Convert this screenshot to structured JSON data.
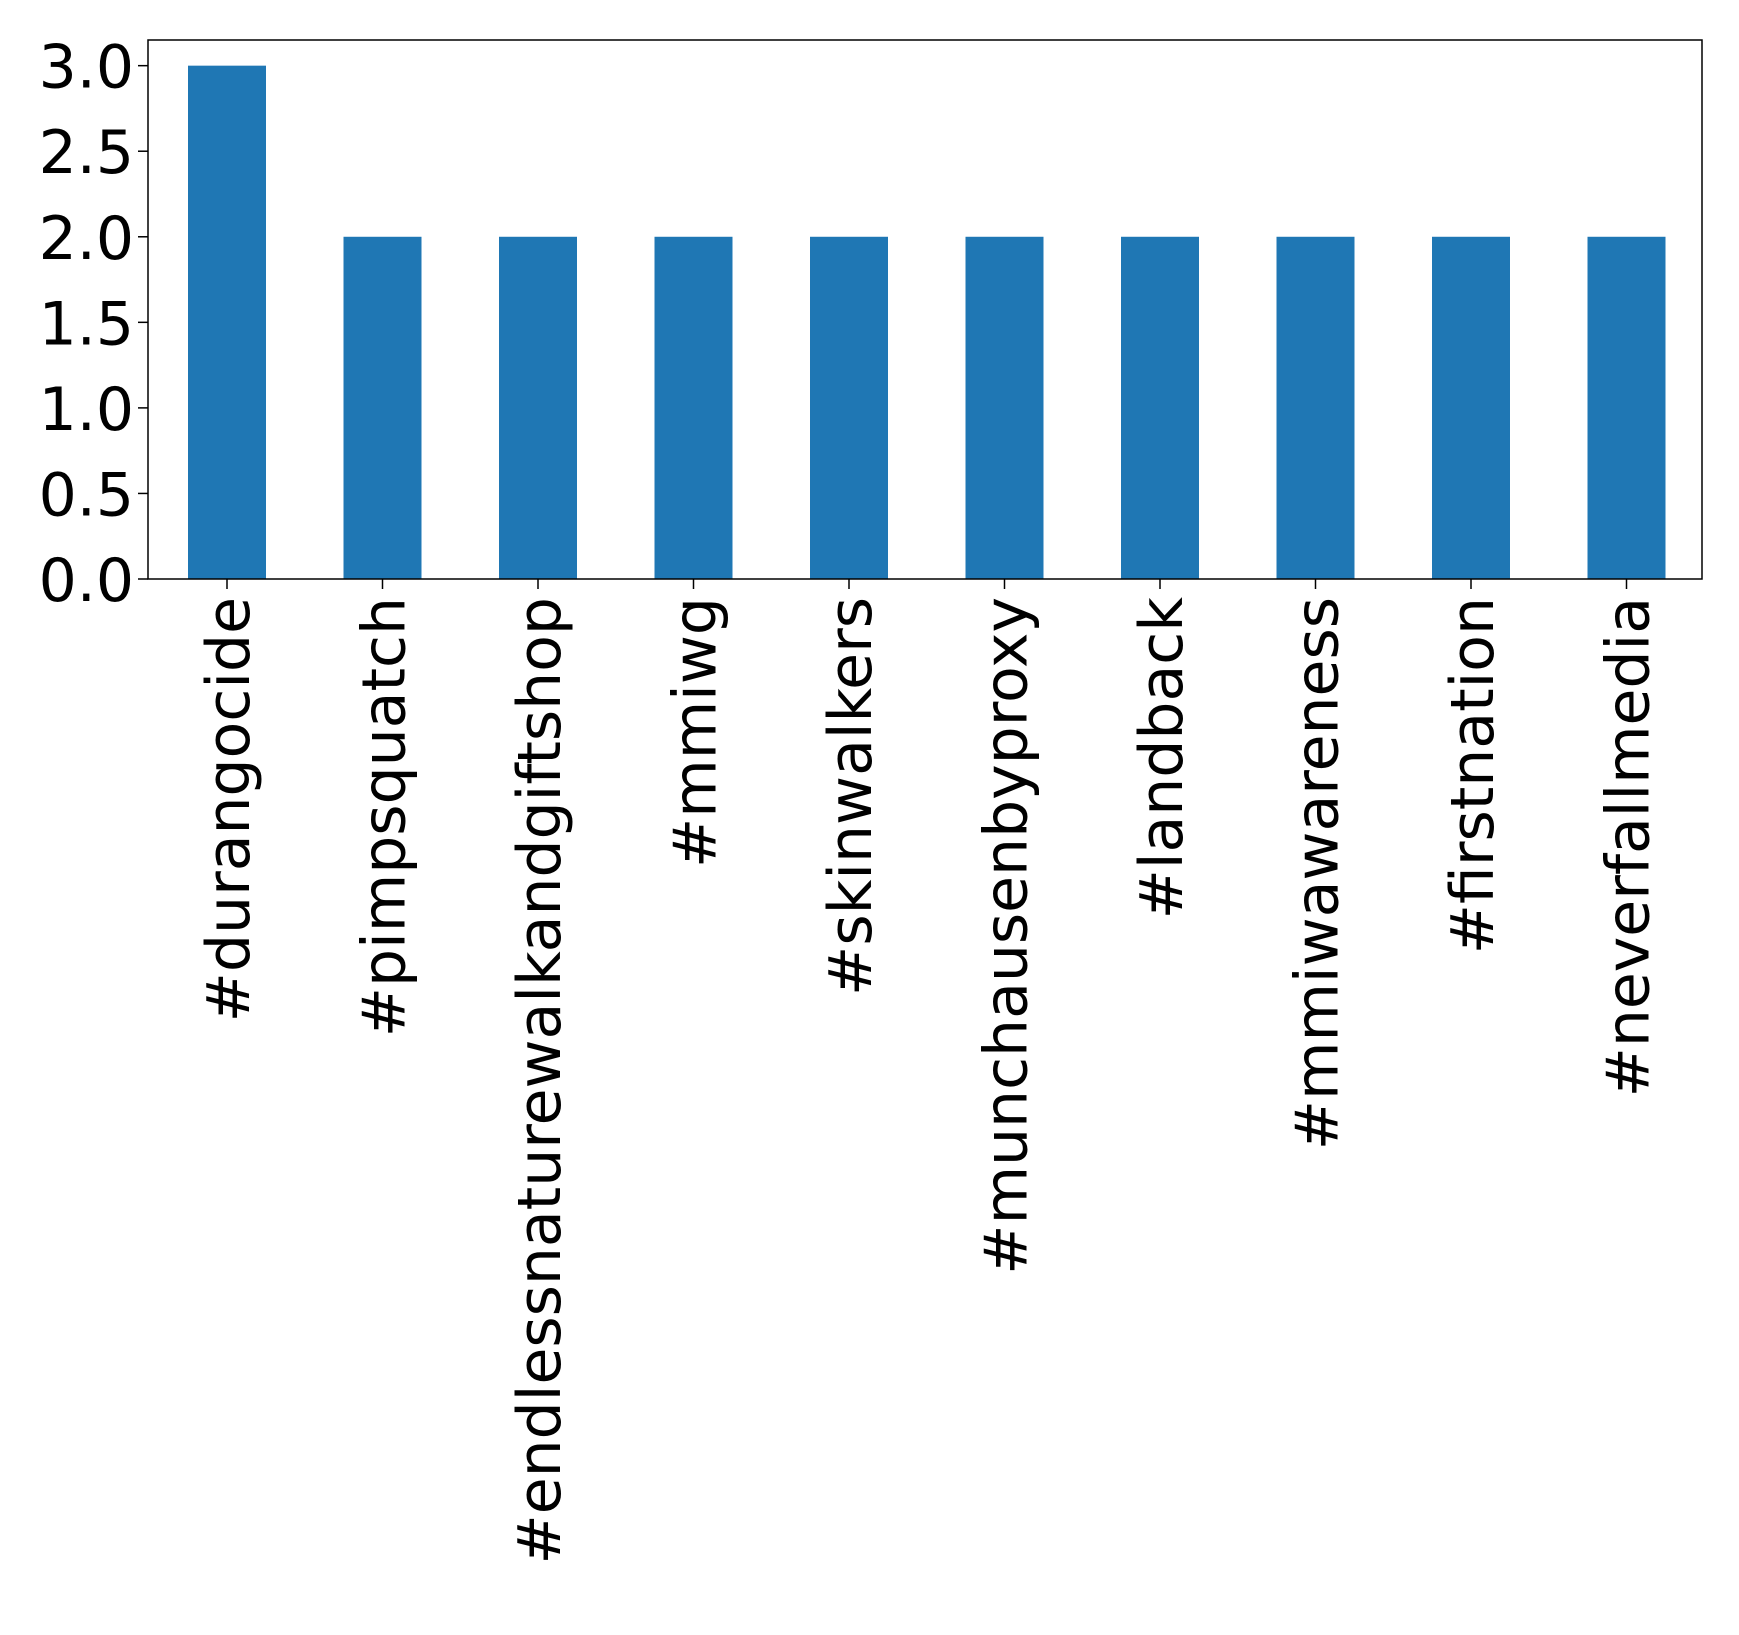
{
  "chart_data": {
    "type": "bar",
    "categories": [
      "#durangocide",
      "#pimpsquatch",
      "#endlessnaturewalkandgiftshop",
      "#mmiwg",
      "#skinwalkers",
      "#munchausenbyproxy",
      "#landback",
      "#mmiwawareness",
      "#firstnation",
      "#neverfallmedia"
    ],
    "values": [
      3,
      2,
      2,
      2,
      2,
      2,
      2,
      2,
      2,
      2
    ],
    "title": "",
    "xlabel": "",
    "ylabel": "",
    "ylim": [
      0,
      3.15
    ],
    "yticks": [
      {
        "value": 0.0,
        "label": "0.0"
      },
      {
        "value": 0.5,
        "label": "0.5"
      },
      {
        "value": 1.0,
        "label": "1.0"
      },
      {
        "value": 1.5,
        "label": "1.5"
      },
      {
        "value": 2.0,
        "label": "2.0"
      },
      {
        "value": 2.5,
        "label": "2.5"
      },
      {
        "value": 3.0,
        "label": "3.0"
      }
    ],
    "bar_color": "#1f77b4",
    "grid": false,
    "legend": "none"
  }
}
